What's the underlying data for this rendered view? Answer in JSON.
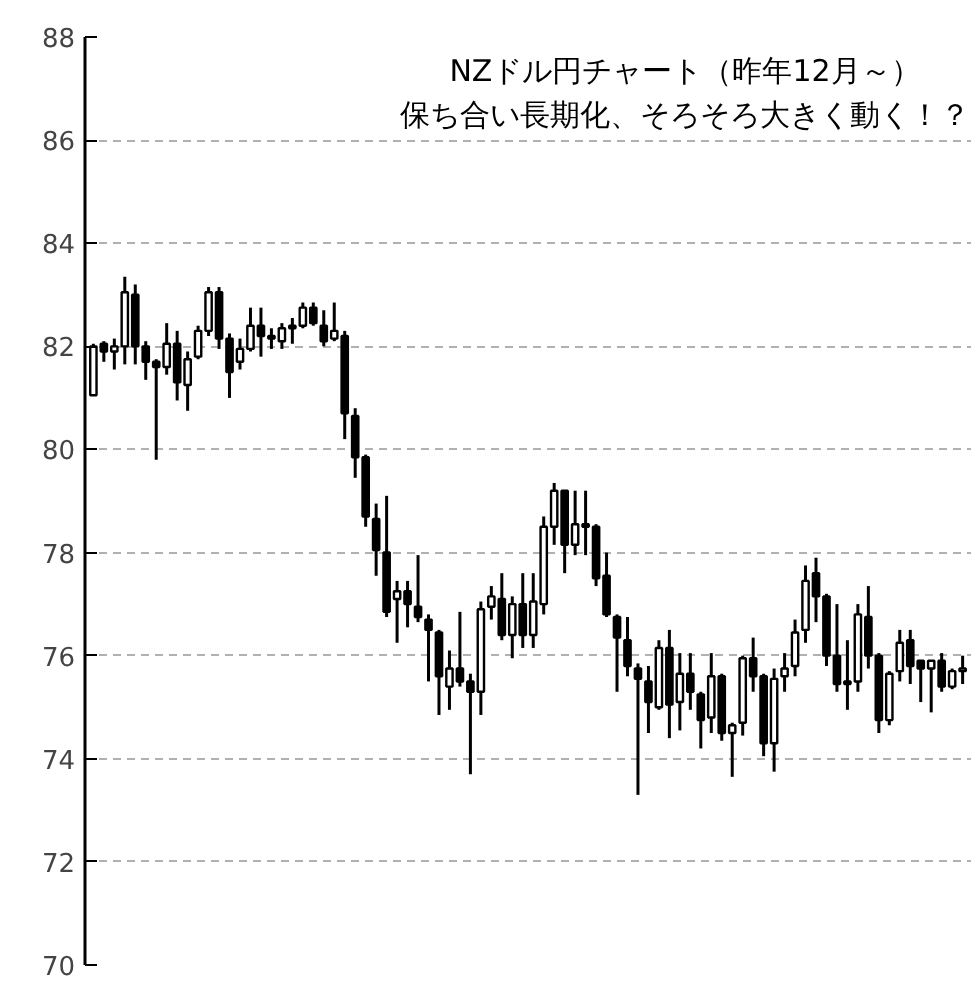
{
  "chart_data": {
    "type": "candlestick",
    "title": "NZドル円チャート（昨年12月～）",
    "subtitle": "保ち合い長期化、そろそろ大きく動く！？",
    "categories": [
      null,
      null,
      null,
      null,
      null,
      null,
      null,
      null,
      null,
      null,
      null,
      null,
      null,
      null,
      null,
      null,
      null,
      null,
      null,
      null,
      null,
      null,
      null,
      null,
      null,
      null,
      null,
      null,
      null,
      null,
      null,
      null,
      null,
      null,
      null,
      null,
      null,
      null,
      null,
      null,
      null,
      null,
      null,
      null,
      null,
      null,
      null,
      null,
      null,
      null,
      null,
      null,
      null,
      null,
      null,
      null,
      null,
      null,
      null,
      null,
      null,
      null,
      null,
      null,
      null,
      null,
      null,
      null,
      null,
      null,
      null,
      null,
      null,
      null,
      null,
      null,
      null,
      null,
      null,
      null,
      null,
      null,
      null,
      null
    ],
    "ohlc": [
      [
        81.05,
        82.05,
        81.05,
        82.0
      ],
      [
        82.05,
        82.1,
        81.7,
        81.9
      ],
      [
        81.9,
        82.15,
        81.55,
        82.0
      ],
      [
        82.0,
        83.35,
        81.65,
        83.05
      ],
      [
        83.0,
        83.2,
        81.65,
        82.0
      ],
      [
        82.0,
        82.1,
        81.35,
        81.7
      ],
      [
        81.7,
        81.75,
        79.8,
        81.6
      ],
      [
        81.6,
        82.45,
        81.45,
        82.05
      ],
      [
        82.05,
        82.3,
        80.95,
        81.3
      ],
      [
        81.25,
        81.9,
        80.75,
        81.75
      ],
      [
        81.8,
        82.4,
        81.75,
        82.3
      ],
      [
        82.3,
        83.15,
        82.2,
        83.05
      ],
      [
        83.05,
        83.15,
        81.95,
        82.15
      ],
      [
        82.15,
        82.25,
        81.0,
        81.5
      ],
      [
        81.7,
        82.15,
        81.55,
        81.95
      ],
      [
        81.95,
        82.75,
        81.9,
        82.4
      ],
      [
        82.4,
        82.75,
        81.8,
        82.2
      ],
      [
        82.2,
        82.35,
        81.95,
        82.15
      ],
      [
        82.1,
        82.45,
        81.95,
        82.35
      ],
      [
        82.35,
        82.55,
        82.05,
        82.4
      ],
      [
        82.4,
        82.85,
        82.35,
        82.75
      ],
      [
        82.75,
        82.85,
        82.4,
        82.45
      ],
      [
        82.4,
        82.7,
        82.0,
        82.1
      ],
      [
        82.15,
        82.85,
        82.1,
        82.3
      ],
      [
        82.2,
        82.3,
        80.2,
        80.7
      ],
      [
        80.65,
        80.8,
        79.45,
        79.85
      ],
      [
        79.85,
        79.9,
        78.5,
        78.7
      ],
      [
        78.65,
        78.95,
        77.55,
        78.05
      ],
      [
        78.0,
        79.1,
        76.75,
        76.85
      ],
      [
        77.1,
        77.45,
        76.25,
        77.25
      ],
      [
        77.25,
        77.45,
        76.55,
        77.0
      ],
      [
        76.95,
        77.95,
        76.65,
        76.75
      ],
      [
        76.7,
        76.8,
        75.5,
        76.5
      ],
      [
        76.45,
        76.5,
        74.85,
        75.6
      ],
      [
        75.4,
        76.1,
        74.95,
        75.75
      ],
      [
        75.75,
        76.85,
        75.4,
        75.5
      ],
      [
        75.5,
        75.65,
        73.7,
        75.3
      ],
      [
        75.3,
        77.05,
        74.85,
        76.9
      ],
      [
        76.95,
        77.35,
        76.7,
        77.15
      ],
      [
        77.1,
        77.6,
        76.3,
        76.4
      ],
      [
        76.4,
        77.15,
        75.95,
        77.0
      ],
      [
        77.0,
        77.6,
        76.15,
        76.4
      ],
      [
        76.4,
        77.6,
        76.15,
        77.05
      ],
      [
        77.0,
        78.7,
        76.8,
        78.5
      ],
      [
        78.5,
        79.35,
        78.15,
        79.2
      ],
      [
        79.2,
        79.2,
        77.6,
        78.15
      ],
      [
        78.15,
        79.2,
        77.95,
        78.55
      ],
      [
        78.55,
        79.2,
        77.95,
        78.5
      ],
      [
        78.5,
        78.55,
        77.35,
        77.5
      ],
      [
        77.55,
        78.0,
        76.75,
        76.8
      ],
      [
        76.75,
        76.8,
        75.3,
        76.35
      ],
      [
        76.3,
        76.75,
        75.6,
        75.8
      ],
      [
        75.75,
        75.85,
        73.3,
        75.55
      ],
      [
        75.5,
        75.8,
        74.5,
        75.1
      ],
      [
        75.0,
        76.3,
        74.95,
        76.15
      ],
      [
        76.15,
        76.5,
        74.4,
        75.05
      ],
      [
        75.1,
        76.05,
        74.55,
        75.65
      ],
      [
        75.65,
        76.05,
        74.95,
        75.3
      ],
      [
        75.25,
        75.3,
        74.2,
        74.75
      ],
      [
        74.8,
        76.05,
        74.5,
        75.6
      ],
      [
        75.6,
        75.65,
        74.35,
        74.5
      ],
      [
        74.5,
        74.7,
        73.65,
        74.65
      ],
      [
        74.7,
        76.0,
        74.45,
        75.95
      ],
      [
        75.95,
        76.35,
        75.3,
        75.6
      ],
      [
        75.6,
        75.65,
        74.05,
        74.3
      ],
      [
        74.3,
        75.75,
        73.75,
        75.55
      ],
      [
        75.6,
        76.05,
        75.3,
        75.75
      ],
      [
        75.8,
        76.7,
        75.6,
        76.45
      ],
      [
        76.5,
        77.75,
        76.25,
        77.45
      ],
      [
        77.6,
        77.9,
        76.65,
        77.15
      ],
      [
        77.15,
        77.2,
        75.8,
        76.0
      ],
      [
        76.0,
        77.0,
        75.3,
        75.45
      ],
      [
        75.5,
        76.3,
        74.95,
        75.45
      ],
      [
        75.5,
        77.0,
        75.3,
        76.8
      ],
      [
        76.75,
        77.35,
        75.75,
        76.0
      ],
      [
        76.0,
        76.05,
        74.5,
        74.75
      ],
      [
        74.75,
        75.7,
        74.65,
        75.65
      ],
      [
        75.7,
        76.5,
        75.5,
        76.25
      ],
      [
        76.3,
        76.5,
        75.45,
        75.8
      ],
      [
        75.9,
        75.9,
        75.1,
        75.75
      ],
      [
        75.75,
        75.9,
        74.9,
        75.9
      ],
      [
        75.9,
        76.05,
        75.3,
        75.4
      ],
      [
        75.4,
        75.75,
        75.35,
        75.7
      ],
      [
        75.7,
        76.0,
        75.45,
        75.75
      ]
    ],
    "ylim": [
      70,
      88
    ],
    "yticks": [
      70,
      72,
      74,
      76,
      78,
      80,
      82,
      84,
      86,
      88
    ],
    "grid": "y"
  }
}
